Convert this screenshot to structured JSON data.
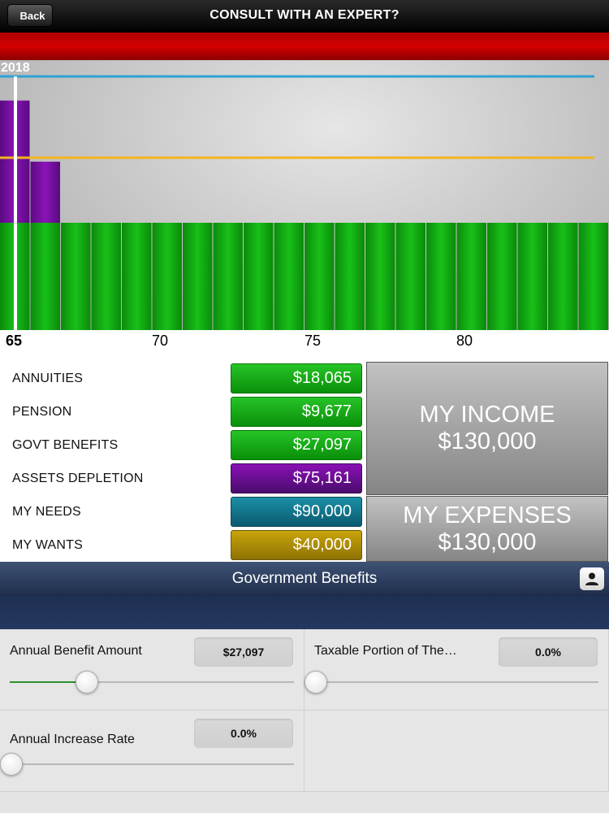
{
  "nav": {
    "back_label": "Back",
    "title": "CONSULT WITH AN EXPERT?"
  },
  "chart_data": {
    "type": "bar",
    "current_year_label": "2018",
    "x_ticks": [
      "65",
      "70",
      "75",
      "80"
    ],
    "age_start": 65,
    "age_end": 84,
    "income_bars_count": 20,
    "assets_depletion_ages": [
      65,
      66
    ],
    "assets_depletion_values": [
      75161,
      37580
    ],
    "needs_line": 90000,
    "wants_line": 40000,
    "colors": {
      "income": "#0aa50a",
      "assets_depletion": "#7a0ca0",
      "needs": "#2aa3d6",
      "wants": "#f2b51e"
    }
  },
  "summary": {
    "rows": [
      {
        "label": "ANNUITIES",
        "value": "$18,065",
        "color": "green"
      },
      {
        "label": "PENSION",
        "value": "$9,677",
        "color": "green"
      },
      {
        "label": "GOVT BENEFITS",
        "value": "$27,097",
        "color": "green"
      },
      {
        "label": "ASSETS DEPLETION",
        "value": "$75,161",
        "color": "purple"
      },
      {
        "label": "MY NEEDS",
        "value": "$90,000",
        "color": "teal"
      },
      {
        "label": "MY WANTS",
        "value": "$40,000",
        "color": "gold"
      }
    ],
    "income": {
      "label": "MY INCOME",
      "value": "$130,000"
    },
    "expenses": {
      "label": "MY EXPENSES",
      "value": "$130,000"
    }
  },
  "section": {
    "title": "Government Benefits",
    "user_icon": "user-icon"
  },
  "fields": {
    "annual_benefit": {
      "label": "Annual Benefit Amount",
      "value": "$27,097",
      "slider_fraction": 0.27
    },
    "taxable_portion": {
      "label": "Taxable Portion of The…",
      "value": "0.0%",
      "slider_fraction": 0.0
    },
    "increase_rate": {
      "label": "Annual Increase Rate",
      "value": "0.0%",
      "slider_fraction": 0.0
    }
  }
}
